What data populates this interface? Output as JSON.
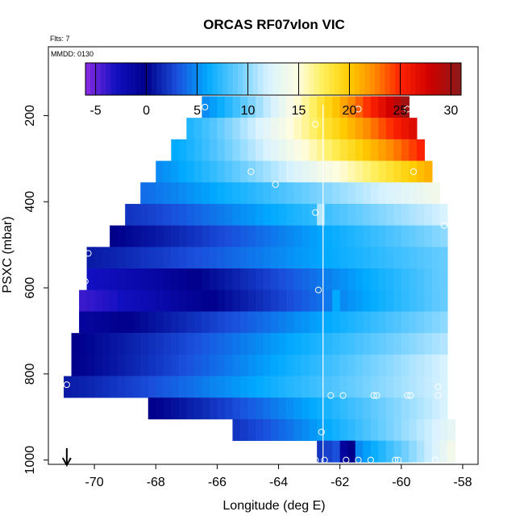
{
  "chart_data": {
    "type": "heatmap",
    "title": "ORCAS RF07vlon VIC",
    "corner_label": "Flts: 7",
    "inner_label": "MMDD: 0130",
    "xlabel": "Longitude (deg E)",
    "ylabel": "PSXC (mbar)",
    "xlim": [
      -71.5,
      -57.5
    ],
    "ylim": [
      1010,
      40
    ],
    "y_reversed": true,
    "x_ticks": [
      -70,
      -68,
      -66,
      -64,
      -62,
      -60,
      -58
    ],
    "y_ticks": [
      200,
      400,
      600,
      800,
      1000
    ],
    "grid": false,
    "colorbar": {
      "range": [
        -6,
        31
      ],
      "ticks": [
        -5,
        0,
        5,
        10,
        15,
        20,
        25,
        30
      ],
      "stops": [
        [
          -6,
          "#8a2be2"
        ],
        [
          -3,
          "#1010c0"
        ],
        [
          0,
          "#00008b"
        ],
        [
          3,
          "#1a4fdc"
        ],
        [
          6,
          "#00aaff"
        ],
        [
          9,
          "#66ccff"
        ],
        [
          12,
          "#d8f2ff"
        ],
        [
          15,
          "#fffde0"
        ],
        [
          17.5,
          "#ffee55"
        ],
        [
          20,
          "#ffcc00"
        ],
        [
          22.5,
          "#ff8800"
        ],
        [
          25,
          "#ff2200"
        ],
        [
          28,
          "#cc0000"
        ],
        [
          31,
          "#8b1a1a"
        ]
      ]
    },
    "vertical_line_x": -62.55,
    "arrow_x": -70.9,
    "rows": [
      {
        "p": 180,
        "x0": -66.5,
        "x1": -59.75,
        "v0": 5,
        "v1": 30
      },
      {
        "p": 230,
        "x0": -67,
        "x1": -59.5,
        "v0": 7,
        "v1": 27
      },
      {
        "p": 280,
        "x0": -67.5,
        "x1": -59.25,
        "v0": 6,
        "v1": 25
      },
      {
        "p": 330,
        "x0": -68,
        "x1": -59,
        "v0": 5,
        "v1": 21
      },
      {
        "p": 380,
        "x0": -68.5,
        "x1": -58.75,
        "v0": 4,
        "v1": 14
      },
      {
        "p": 430,
        "x0": -69,
        "x1": -58.5,
        "v0": 2,
        "v1": 12
      },
      {
        "p": 480,
        "x0": -69.5,
        "x1": -58.5,
        "v0": 0,
        "v1": 10
      },
      {
        "p": 530,
        "x0": -70.25,
        "x1": -58.5,
        "v0": 1,
        "v1": 9
      },
      {
        "p": 580,
        "x0": -70.25,
        "x1": -58.5,
        "v0": -3,
        "v1": 9
      },
      {
        "p": 630,
        "x0": -70.5,
        "x1": -58.5,
        "v0": -4,
        "v1": 9
      },
      {
        "p": 680,
        "x0": -70.5,
        "x1": -58.5,
        "v0": -1,
        "v1": 10
      },
      {
        "p": 730,
        "x0": -70.75,
        "x1": -58.5,
        "v0": 0,
        "v1": 11
      },
      {
        "p": 780,
        "x0": -70.75,
        "x1": -58.5,
        "v0": 0,
        "v1": 12
      },
      {
        "p": 830,
        "x0": -71,
        "x1": -58.5,
        "v0": 1,
        "v1": 12
      },
      {
        "p": 880,
        "x0": -68.25,
        "x1": -58.5,
        "v0": 0,
        "v1": 12
      },
      {
        "p": 930,
        "x0": -65.5,
        "x1": -58.25,
        "v0": 2,
        "v1": 13
      },
      {
        "p": 980,
        "x0": -62.75,
        "x1": -58.25,
        "v0": 2,
        "v1": 14
      }
    ],
    "overrides": [
      {
        "p": 980,
        "x": -62.0,
        "v": -1
      },
      {
        "p": 980,
        "x": -61.75,
        "v": 0
      },
      {
        "p": 630,
        "x": -62.25,
        "v": 6
      },
      {
        "p": 430,
        "x": -62.75,
        "v": 11
      }
    ],
    "points": [
      {
        "x": -66.4,
        "p": 180
      },
      {
        "x": -62.8,
        "p": 220
      },
      {
        "x": -61.4,
        "p": 185
      },
      {
        "x": -59.8,
        "p": 185
      },
      {
        "x": -64.9,
        "p": 330
      },
      {
        "x": -59.6,
        "p": 330
      },
      {
        "x": -64.1,
        "p": 360
      },
      {
        "x": -62.8,
        "p": 425
      },
      {
        "x": -58.6,
        "p": 455
      },
      {
        "x": -70.2,
        "p": 520
      },
      {
        "x": -70.3,
        "p": 585
      },
      {
        "x": -62.7,
        "p": 605
      },
      {
        "x": -70.9,
        "p": 825
      },
      {
        "x": -62.3,
        "p": 850
      },
      {
        "x": -61.9,
        "p": 850
      },
      {
        "x": -60.9,
        "p": 850
      },
      {
        "x": -60.8,
        "p": 850
      },
      {
        "x": -59.8,
        "p": 850
      },
      {
        "x": -59.7,
        "p": 850
      },
      {
        "x": -58.8,
        "p": 830
      },
      {
        "x": -58.8,
        "p": 850
      },
      {
        "x": -62.6,
        "p": 935
      },
      {
        "x": -62.8,
        "p": 1000
      },
      {
        "x": -62.5,
        "p": 1000
      },
      {
        "x": -61.8,
        "p": 1000
      },
      {
        "x": -61.4,
        "p": 1000
      },
      {
        "x": -61.0,
        "p": 1000
      },
      {
        "x": -60.2,
        "p": 1000
      },
      {
        "x": -60.1,
        "p": 1000
      },
      {
        "x": -58.9,
        "p": 1000
      }
    ]
  }
}
